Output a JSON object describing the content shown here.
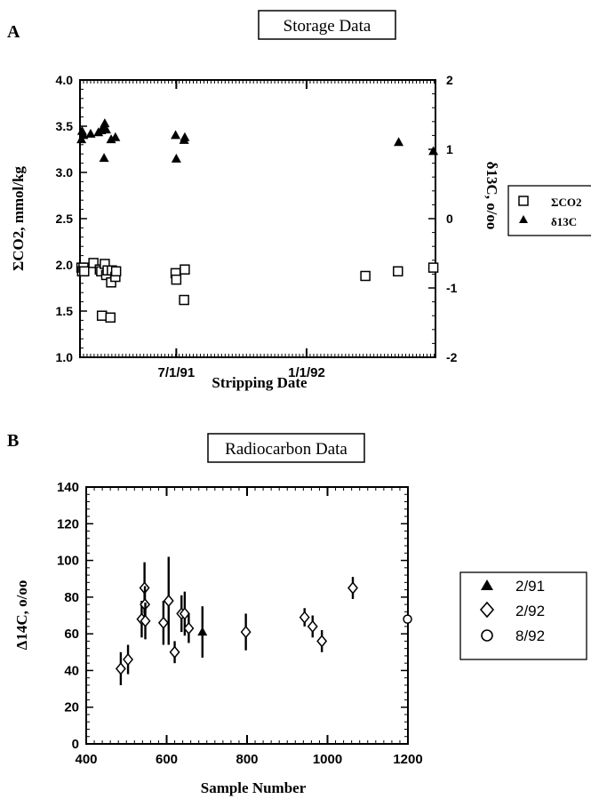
{
  "chart_data": [
    {
      "panel_letter": "A",
      "title": "Storage Data",
      "type": "scatter",
      "xlabel": "Stripping Date",
      "ylabel_left": "ΣCO2, mmol/kg",
      "ylabel_right": "δ13C, o/oo",
      "x_ticks": [
        "7/1/91",
        "1/1/92"
      ],
      "xlim": [
        "1991-02-15",
        "1992-07-01"
      ],
      "ylim_left": [
        1.0,
        4.0
      ],
      "ylim_right": [
        -2,
        2
      ],
      "y_ticks_left": [
        "1.0",
        "1.5",
        "2.0",
        "2.5",
        "3.0",
        "3.5",
        "4.0"
      ],
      "y_ticks_right": [
        "-2",
        "-1",
        "0",
        "1",
        "2"
      ],
      "legend_placement": "right",
      "series": [
        {
          "name": "ΣCO2",
          "axis": "left",
          "marker": "open-square",
          "points": [
            {
              "x": "1991-02-17",
              "y": 1.97
            },
            {
              "x": "1991-02-18",
              "y": 1.93
            },
            {
              "x": "1991-02-20",
              "y": 1.97
            },
            {
              "x": "1991-02-21",
              "y": 1.93
            },
            {
              "x": "1991-03-06",
              "y": 2.02
            },
            {
              "x": "1991-03-15",
              "y": 1.95
            },
            {
              "x": "1991-03-17",
              "y": 1.93
            },
            {
              "x": "1991-03-18",
              "y": 1.45
            },
            {
              "x": "1991-03-22",
              "y": 2.01
            },
            {
              "x": "1991-03-24",
              "y": 1.89
            },
            {
              "x": "1991-03-26",
              "y": 1.94
            },
            {
              "x": "1991-03-30",
              "y": 1.43
            },
            {
              "x": "1991-03-31",
              "y": 1.81
            },
            {
              "x": "1991-04-01",
              "y": 1.94
            },
            {
              "x": "1991-04-06",
              "y": 1.87
            },
            {
              "x": "1991-04-07",
              "y": 1.93
            },
            {
              "x": "1991-06-30",
              "y": 1.91
            },
            {
              "x": "1991-07-01",
              "y": 1.84
            },
            {
              "x": "1991-07-12",
              "y": 1.62
            },
            {
              "x": "1991-07-13",
              "y": 1.95
            },
            {
              "x": "1992-03-24",
              "y": 1.88
            },
            {
              "x": "1992-05-09",
              "y": 1.93
            },
            {
              "x": "1992-06-28",
              "y": 1.97
            }
          ]
        },
        {
          "name": "δ13C",
          "axis": "right",
          "marker": "filled-triangle",
          "points": [
            {
              "x": "1991-02-17",
              "y": 1.14
            },
            {
              "x": "1991-02-18",
              "y": 1.26
            },
            {
              "x": "1991-02-20",
              "y": 1.2
            },
            {
              "x": "1991-03-02",
              "y": 1.22
            },
            {
              "x": "1991-03-13",
              "y": 1.24
            },
            {
              "x": "1991-03-17",
              "y": 1.27
            },
            {
              "x": "1991-03-20",
              "y": 1.3
            },
            {
              "x": "1991-03-21",
              "y": 0.87
            },
            {
              "x": "1991-03-22",
              "y": 1.37
            },
            {
              "x": "1991-03-24",
              "y": 1.28
            },
            {
              "x": "1991-03-31",
              "y": 1.14
            },
            {
              "x": "1991-04-06",
              "y": 1.17
            },
            {
              "x": "1991-06-30",
              "y": 1.2
            },
            {
              "x": "1991-07-01",
              "y": 0.86
            },
            {
              "x": "1991-07-12",
              "y": 1.13
            },
            {
              "x": "1991-07-13",
              "y": 1.17
            },
            {
              "x": "1992-05-10",
              "y": 1.1
            },
            {
              "x": "1992-06-28",
              "y": 0.97
            }
          ]
        }
      ],
      "legend": [
        {
          "label": "ΣCO2",
          "marker": "open-square"
        },
        {
          "label": "δ13C",
          "marker": "filled-triangle"
        }
      ]
    },
    {
      "panel_letter": "B",
      "title": "Radiocarbon Data",
      "type": "scatter",
      "xlabel": "Sample Number",
      "ylabel": "Δ14C, o/oo",
      "xlim": [
        400,
        1200
      ],
      "ylim": [
        0,
        140
      ],
      "x_ticks": [
        "400",
        "600",
        "800",
        "1000",
        "1200"
      ],
      "y_ticks": [
        "0",
        "20",
        "40",
        "60",
        "80",
        "100",
        "120",
        "140"
      ],
      "legend_placement": "right",
      "series": [
        {
          "name": "2/91",
          "marker": "filled-triangle",
          "points": [
            {
              "x": 689,
              "y": 61,
              "err": 14
            }
          ]
        },
        {
          "name": "2/92",
          "marker": "open-diamond",
          "points": [
            {
              "x": 486,
              "y": 41,
              "err": 9
            },
            {
              "x": 504,
              "y": 46,
              "err": 8
            },
            {
              "x": 538,
              "y": 68,
              "err": 10
            },
            {
              "x": 545,
              "y": 85,
              "err": 14
            },
            {
              "x": 546,
              "y": 76,
              "err": 10
            },
            {
              "x": 547,
              "y": 67,
              "err": 10
            },
            {
              "x": 592,
              "y": 66,
              "err": 12
            },
            {
              "x": 605,
              "y": 78,
              "err": 24
            },
            {
              "x": 620,
              "y": 50,
              "err": 6
            },
            {
              "x": 637,
              "y": 71,
              "err": 10
            },
            {
              "x": 645,
              "y": 71,
              "err": 12
            },
            {
              "x": 655,
              "y": 63,
              "err": 8
            },
            {
              "x": 797,
              "y": 61,
              "err": 10
            },
            {
              "x": 943,
              "y": 69,
              "err": 5
            },
            {
              "x": 963,
              "y": 64,
              "err": 6
            },
            {
              "x": 986,
              "y": 56,
              "err": 6
            },
            {
              "x": 1063,
              "y": 85,
              "err": 6
            }
          ]
        },
        {
          "name": "8/92",
          "marker": "open-circle",
          "points": [
            {
              "x": 1199,
              "y": 68,
              "err": 0
            }
          ]
        }
      ],
      "legend": [
        {
          "label": "2/91",
          "marker": "filled-triangle"
        },
        {
          "label": "2/92",
          "marker": "open-diamond"
        },
        {
          "label": "8/92",
          "marker": "open-circle"
        }
      ]
    }
  ]
}
